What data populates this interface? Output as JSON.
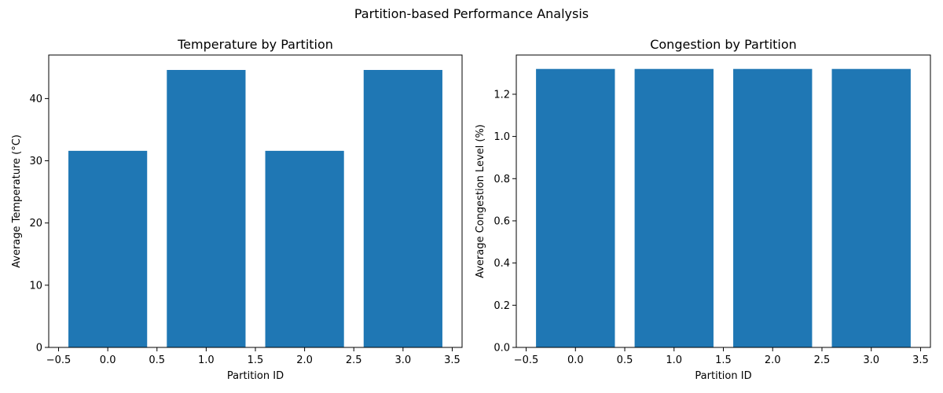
{
  "figure": {
    "suptitle": "Partition-based Performance Analysis",
    "bar_color": "#1f77b4"
  },
  "chart_data": [
    {
      "type": "bar",
      "title": "Temperature by Partition",
      "xlabel": "Partition ID",
      "ylabel": "Average Temperature (°C)",
      "x": [
        0,
        1,
        2,
        3
      ],
      "values": [
        31.6,
        44.6,
        31.6,
        44.6
      ],
      "bar_width": 0.8,
      "xlim": [
        -0.6,
        3.6
      ],
      "ylim": [
        0,
        47
      ],
      "xticks": [
        -0.5,
        0.0,
        0.5,
        1.0,
        1.5,
        2.0,
        2.5,
        3.0,
        3.5
      ],
      "xtick_labels": [
        "−0.5",
        "0.0",
        "0.5",
        "1.0",
        "1.5",
        "2.0",
        "2.5",
        "3.0",
        "3.5"
      ],
      "yticks": [
        0,
        10,
        20,
        30,
        40
      ],
      "ytick_labels": [
        "0",
        "10",
        "20",
        "30",
        "40"
      ],
      "grid": false,
      "legend": "none"
    },
    {
      "type": "bar",
      "title": "Congestion by Partition",
      "xlabel": "Partition ID",
      "ylabel": "Average Congestion Level (%)",
      "x": [
        0,
        1,
        2,
        3
      ],
      "values": [
        1.32,
        1.32,
        1.32,
        1.32
      ],
      "bar_width": 0.8,
      "xlim": [
        -0.6,
        3.6
      ],
      "ylim": [
        0,
        1.386
      ],
      "xticks": [
        -0.5,
        0.0,
        0.5,
        1.0,
        1.5,
        2.0,
        2.5,
        3.0,
        3.5
      ],
      "xtick_labels": [
        "−0.5",
        "0.0",
        "0.5",
        "1.0",
        "1.5",
        "2.0",
        "2.5",
        "3.0",
        "3.5"
      ],
      "yticks": [
        0.0,
        0.2,
        0.4,
        0.6,
        0.8,
        1.0,
        1.2
      ],
      "ytick_labels": [
        "0.0",
        "0.2",
        "0.4",
        "0.6",
        "0.8",
        "1.0",
        "1.2"
      ],
      "grid": false,
      "legend": "none"
    }
  ]
}
